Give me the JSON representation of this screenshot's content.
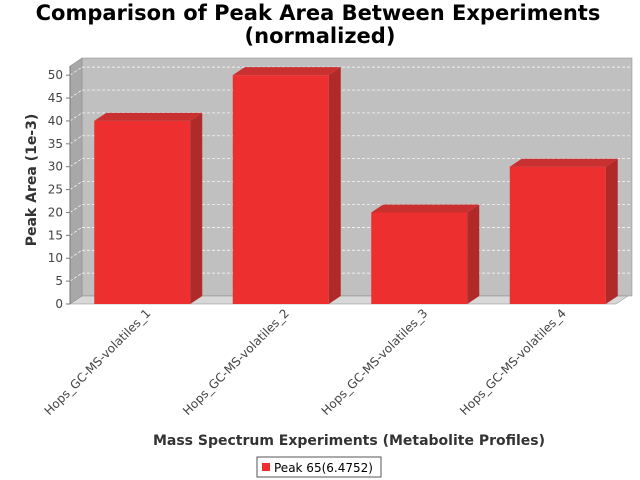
{
  "chart_data": {
    "type": "bar",
    "title_line1": "Comparison of Peak Area Between Experiments",
    "title_line2": "(normalized)",
    "xlabel": "Mass Spectrum Experiments (Metabolite Profiles)",
    "ylabel": "Peak Area (1e-3)",
    "categories": [
      "Hops_GC-MS-volatiles_1",
      "Hops_GC-MS-volatiles_2",
      "Hops_GC-MS-volatiles_3",
      "Hops_GC-MS-volatiles_4"
    ],
    "series": [
      {
        "name": "Peak 65(6.4752)",
        "values": [
          40,
          50,
          20,
          30
        ],
        "color": "#ee2f2f"
      }
    ],
    "ylim": [
      0,
      52
    ],
    "yticks": [
      0,
      5,
      10,
      15,
      20,
      25,
      30,
      35,
      40,
      45,
      50
    ],
    "grid": true,
    "legend_position": "bottom",
    "plot_background": "#c0c0c0",
    "style": "3d"
  }
}
